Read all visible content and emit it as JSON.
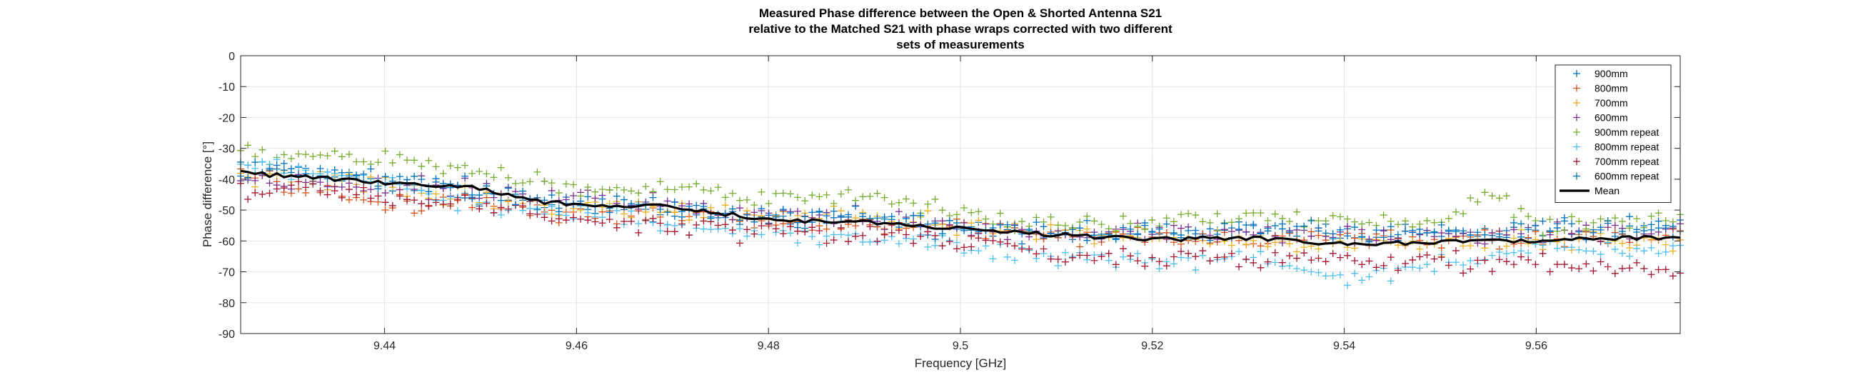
{
  "chart_data": {
    "type": "scatter",
    "title": [
      "Measured Phase difference between the Open & Shorted Antenna S21",
      "relative to the Matched S21 with phase wraps corrected with two different",
      "sets of measurements"
    ],
    "xlabel": "Frequency [GHz]",
    "ylabel": "Phase difference [°]",
    "xlim": [
      9.425,
      9.575
    ],
    "ylim": [
      -90,
      0
    ],
    "xticks": [
      "9.44",
      "9.46",
      "9.48",
      "9.5",
      "9.52",
      "9.54",
      "9.56"
    ],
    "yticks": [
      "0",
      "-10",
      "-20",
      "-30",
      "-40",
      "-50",
      "-60",
      "-70",
      "-80",
      "-90"
    ],
    "grid": true,
    "legend_position": "top-right",
    "series": [
      {
        "name": "900mm",
        "color": "#0072BD",
        "marker": "+",
        "keypoints": [
          [
            9.425,
            -35
          ],
          [
            9.44,
            -41
          ],
          [
            9.45,
            -45
          ],
          [
            9.46,
            -49
          ],
          [
            9.47,
            -52
          ],
          [
            9.48,
            -53
          ],
          [
            9.49,
            -53
          ],
          [
            9.5,
            -56
          ],
          [
            9.51,
            -57
          ],
          [
            9.52,
            -58
          ],
          [
            9.53,
            -57
          ],
          [
            9.54,
            -57
          ],
          [
            9.55,
            -58
          ],
          [
            9.56,
            -57
          ],
          [
            9.575,
            -56
          ]
        ]
      },
      {
        "name": "800mm",
        "color": "#D95319",
        "marker": "+",
        "keypoints": [
          [
            9.425,
            -39
          ],
          [
            9.44,
            -48
          ],
          [
            9.45,
            -47
          ],
          [
            9.46,
            -51
          ],
          [
            9.47,
            -52
          ],
          [
            9.48,
            -54
          ],
          [
            9.49,
            -55
          ],
          [
            9.5,
            -56
          ],
          [
            9.51,
            -58
          ],
          [
            9.52,
            -59
          ],
          [
            9.53,
            -59
          ],
          [
            9.54,
            -59
          ],
          [
            9.55,
            -60
          ],
          [
            9.56,
            -59
          ],
          [
            9.575,
            -58
          ]
        ]
      },
      {
        "name": "700mm",
        "color": "#EDB120",
        "marker": "+",
        "keypoints": [
          [
            9.425,
            -39
          ],
          [
            9.44,
            -42
          ],
          [
            9.45,
            -46
          ],
          [
            9.46,
            -49
          ],
          [
            9.47,
            -50
          ],
          [
            9.48,
            -52
          ],
          [
            9.49,
            -53
          ],
          [
            9.5,
            -55
          ],
          [
            9.51,
            -57
          ],
          [
            9.52,
            -59
          ],
          [
            9.53,
            -60
          ],
          [
            9.54,
            -61
          ],
          [
            9.55,
            -61
          ],
          [
            9.56,
            -60
          ],
          [
            9.575,
            -60
          ]
        ]
      },
      {
        "name": "600mm",
        "color": "#7E2F8E",
        "marker": "+",
        "keypoints": [
          [
            9.425,
            -40
          ],
          [
            9.44,
            -42
          ],
          [
            9.45,
            -44
          ],
          [
            9.46,
            -44
          ],
          [
            9.47,
            -48
          ],
          [
            9.48,
            -50
          ],
          [
            9.49,
            -53
          ],
          [
            9.5,
            -56
          ],
          [
            9.51,
            -58
          ],
          [
            9.52,
            -57
          ],
          [
            9.53,
            -57
          ],
          [
            9.54,
            -58
          ],
          [
            9.55,
            -58
          ],
          [
            9.56,
            -57
          ],
          [
            9.575,
            -57
          ]
        ]
      },
      {
        "name": "900mm repeat",
        "color": "#77AC30",
        "marker": "+",
        "keypoints": [
          [
            9.425,
            -32
          ],
          [
            9.44,
            -33
          ],
          [
            9.45,
            -38
          ],
          [
            9.46,
            -43
          ],
          [
            9.47,
            -42
          ],
          [
            9.48,
            -47
          ],
          [
            9.49,
            -45
          ],
          [
            9.5,
            -52
          ],
          [
            9.51,
            -54
          ],
          [
            9.52,
            -55
          ],
          [
            9.53,
            -52
          ],
          [
            9.54,
            -53
          ],
          [
            9.55,
            -53
          ],
          [
            9.555,
            -45
          ],
          [
            9.56,
            -54
          ],
          [
            9.575,
            -53
          ]
        ]
      },
      {
        "name": "800mm repeat",
        "color": "#4DBEEE",
        "marker": "+",
        "keypoints": [
          [
            9.425,
            -35
          ],
          [
            9.44,
            -42
          ],
          [
            9.45,
            -48
          ],
          [
            9.46,
            -50
          ],
          [
            9.47,
            -55
          ],
          [
            9.48,
            -57
          ],
          [
            9.49,
            -60
          ],
          [
            9.5,
            -61
          ],
          [
            9.51,
            -65
          ],
          [
            9.52,
            -67
          ],
          [
            9.53,
            -65
          ],
          [
            9.54,
            -72
          ],
          [
            9.55,
            -68
          ],
          [
            9.56,
            -63
          ],
          [
            9.575,
            -62
          ]
        ]
      },
      {
        "name": "700mm repeat",
        "color": "#A2142F",
        "marker": "+",
        "keypoints": [
          [
            9.425,
            -43
          ],
          [
            9.44,
            -46
          ],
          [
            9.45,
            -49
          ],
          [
            9.46,
            -52
          ],
          [
            9.47,
            -55
          ],
          [
            9.48,
            -57
          ],
          [
            9.49,
            -58
          ],
          [
            9.5,
            -60
          ],
          [
            9.51,
            -64
          ],
          [
            9.52,
            -66
          ],
          [
            9.53,
            -66
          ],
          [
            9.54,
            -66
          ],
          [
            9.55,
            -67
          ],
          [
            9.56,
            -68
          ],
          [
            9.575,
            -70
          ]
        ]
      },
      {
        "name": "600mm repeat",
        "color": "#0072BD",
        "marker": "+",
        "keypoints": [
          [
            9.425,
            -36
          ],
          [
            9.44,
            -39
          ],
          [
            9.45,
            -44
          ],
          [
            9.46,
            -47
          ],
          [
            9.47,
            -50
          ],
          [
            9.48,
            -51
          ],
          [
            9.49,
            -52
          ],
          [
            9.5,
            -55
          ],
          [
            9.51,
            -57
          ],
          [
            9.52,
            -57
          ],
          [
            9.53,
            -56
          ],
          [
            9.54,
            -57
          ],
          [
            9.55,
            -58
          ],
          [
            9.56,
            -57
          ],
          [
            9.575,
            -55
          ]
        ]
      },
      {
        "name": "Mean",
        "color": "#000000",
        "marker": "line",
        "keypoints": [
          [
            9.425,
            -38
          ],
          [
            9.43,
            -39
          ],
          [
            9.44,
            -41
          ],
          [
            9.45,
            -43
          ],
          [
            9.455,
            -47
          ],
          [
            9.46,
            -48
          ],
          [
            9.47,
            -49
          ],
          [
            9.48,
            -53
          ],
          [
            9.49,
            -54
          ],
          [
            9.5,
            -56
          ],
          [
            9.51,
            -58
          ],
          [
            9.52,
            -59.5
          ],
          [
            9.53,
            -59
          ],
          [
            9.54,
            -61
          ],
          [
            9.55,
            -60.5
          ],
          [
            9.56,
            -60
          ],
          [
            9.57,
            -59
          ],
          [
            9.575,
            -59
          ]
        ]
      }
    ]
  }
}
